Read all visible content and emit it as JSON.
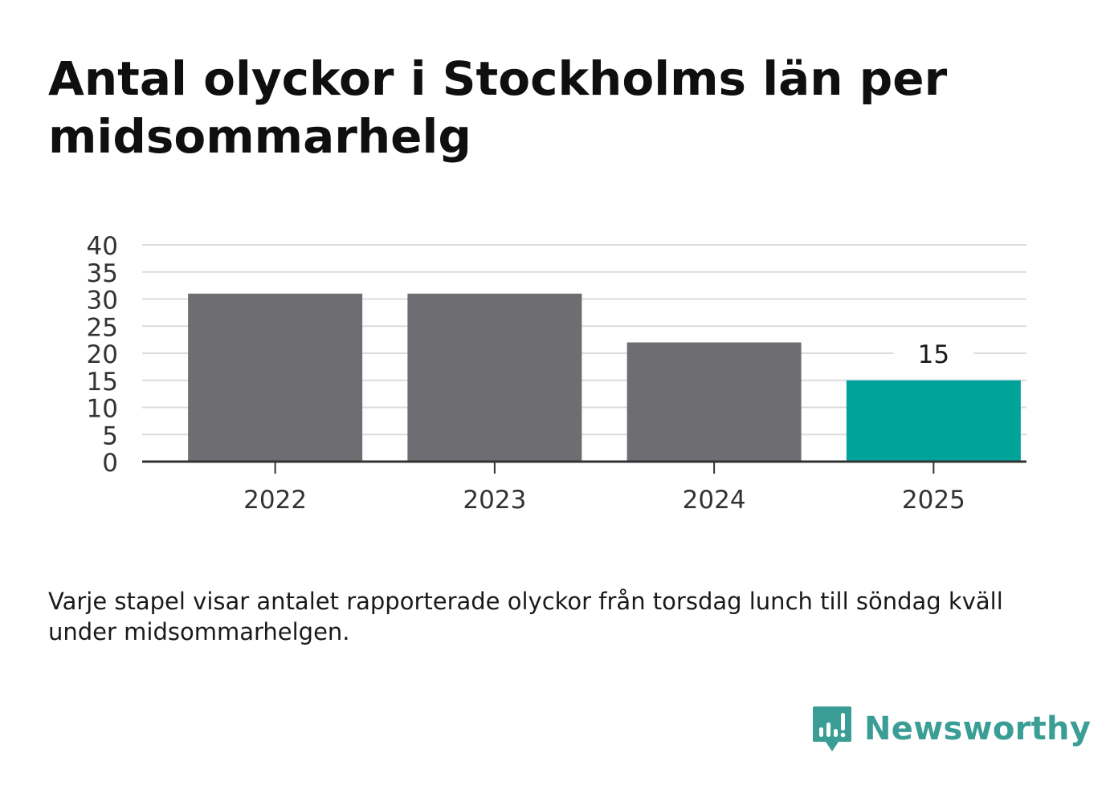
{
  "title": "Antal olyckor i Stockholms län per midsommarhelg",
  "note": "Varje stapel visar antalet rapporterade olyckor från torsdag lunch till söndag kväll under midsommarhelgen.",
  "brand": {
    "name": "Newsworthy",
    "icon": "newsworthy-logo-icon",
    "color": "#3a9e96"
  },
  "chart_data": {
    "type": "bar",
    "categories": [
      "2022",
      "2023",
      "2024",
      "2025"
    ],
    "values": [
      31,
      31,
      22,
      15
    ],
    "labels": [
      "",
      "",
      "",
      "15"
    ],
    "colors": [
      "#6e6d72",
      "#6e6d72",
      "#6e6d72",
      "#00a39a"
    ],
    "yticks": [
      "0",
      "5",
      "10",
      "15",
      "20",
      "25",
      "30",
      "35",
      "40"
    ],
    "ylim": [
      0,
      40
    ],
    "grid": true,
    "xlabel": "",
    "ylabel": ""
  }
}
